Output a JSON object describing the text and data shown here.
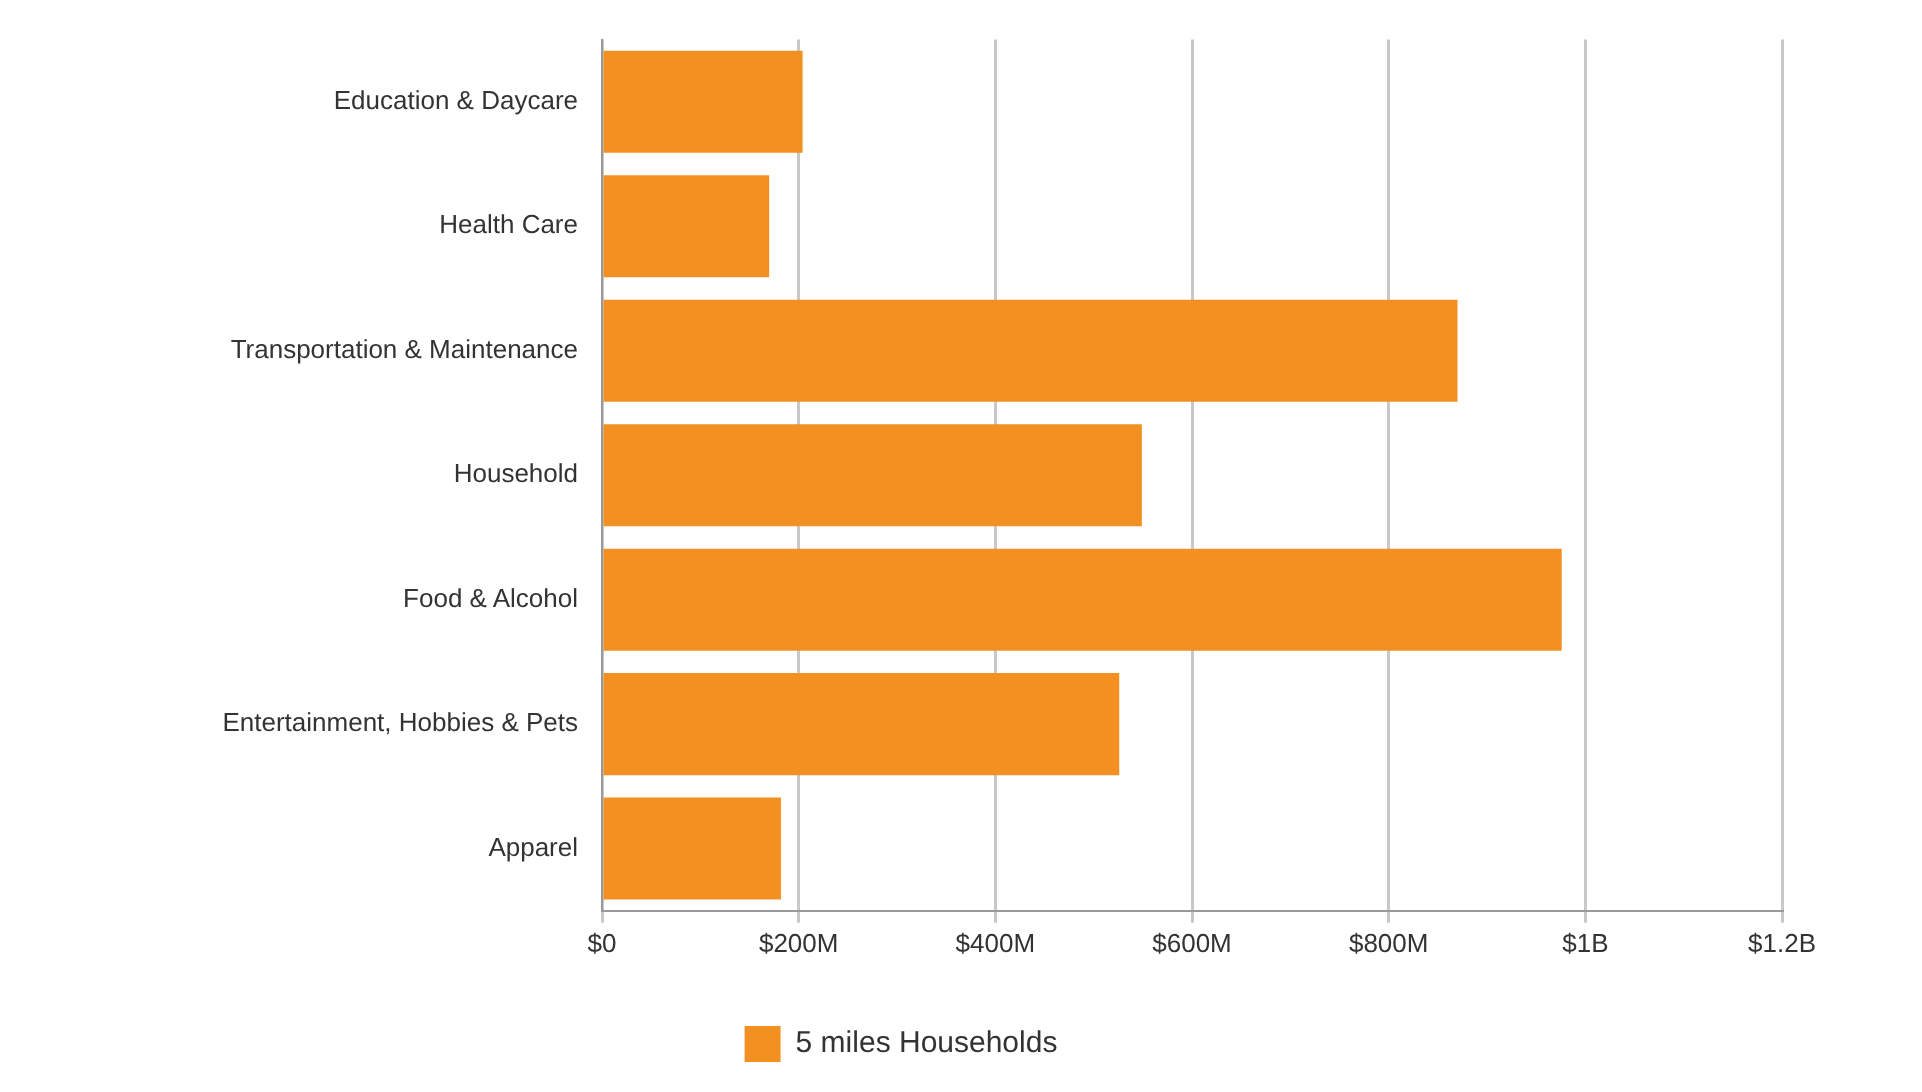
{
  "chart_data": {
    "type": "bar",
    "orientation": "horizontal",
    "categories": [
      "Education & Daycare",
      "Health Care",
      "Transportation & Maintenance",
      "Household",
      "Food & Alcohol",
      "Entertainment, Hobbies & Pets",
      "Apparel"
    ],
    "series": [
      {
        "name": "5 miles Households",
        "color": "#f29122",
        "values": [
          204000000,
          170000000,
          870000000,
          549000000,
          976000000,
          526000000,
          182000000
        ]
      }
    ],
    "xlim": [
      0,
      1200000000
    ],
    "xticks": [
      {
        "value": 0,
        "label": "$0"
      },
      {
        "value": 200000000,
        "label": "$200M"
      },
      {
        "value": 400000000,
        "label": "$400M"
      },
      {
        "value": 600000000,
        "label": "$600M"
      },
      {
        "value": 800000000,
        "label": "$800M"
      },
      {
        "value": 1000000000,
        "label": "$1B"
      },
      {
        "value": 1200000000,
        "label": "$1.2B"
      }
    ],
    "grid": "x",
    "legend": "bottom"
  }
}
